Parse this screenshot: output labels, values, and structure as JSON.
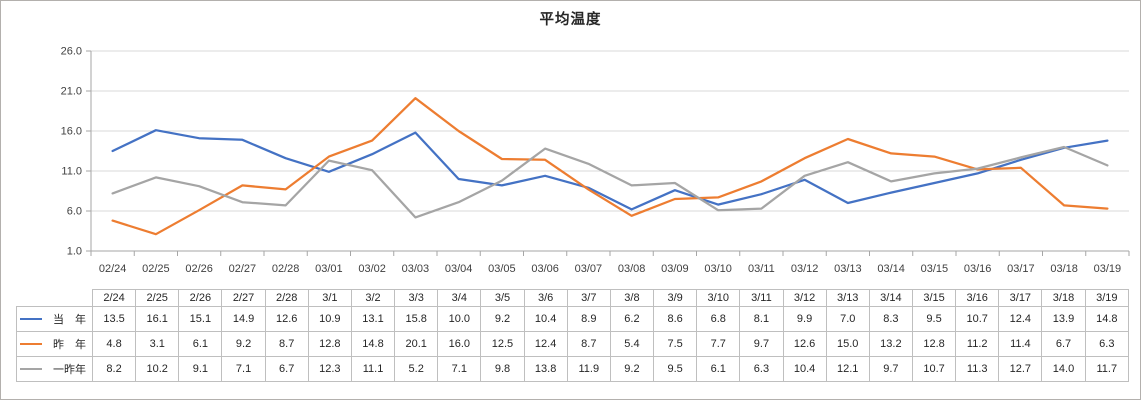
{
  "title": "平均温度",
  "chart_data": {
    "type": "line",
    "title": "平均温度",
    "x_axis_labels": [
      "02/24",
      "02/25",
      "02/26",
      "02/27",
      "02/28",
      "03/01",
      "03/02",
      "03/03",
      "03/04",
      "03/05",
      "03/06",
      "03/07",
      "03/08",
      "03/09",
      "03/10",
      "03/11",
      "03/12",
      "03/13",
      "03/14",
      "03/15",
      "03/16",
      "03/17",
      "03/18",
      "03/19"
    ],
    "table_headers": [
      "2/24",
      "2/25",
      "2/26",
      "2/27",
      "2/28",
      "3/1",
      "3/2",
      "3/3",
      "3/4",
      "3/5",
      "3/6",
      "3/7",
      "3/8",
      "3/9",
      "3/10",
      "3/11",
      "3/12",
      "3/13",
      "3/14",
      "3/15",
      "3/16",
      "3/17",
      "3/18",
      "3/19"
    ],
    "y_ticks": [
      26.0,
      21.0,
      16.0,
      11.0,
      6.0,
      1.0
    ],
    "ylim": [
      1.0,
      26.0
    ],
    "grid": true,
    "legend_position": "data-table-left",
    "series": [
      {
        "name": "当　年",
        "color": "#4472C4",
        "values": [
          13.5,
          16.1,
          15.1,
          14.9,
          12.6,
          10.9,
          13.1,
          15.8,
          10.0,
          9.2,
          10.4,
          8.9,
          6.2,
          8.6,
          6.8,
          8.1,
          9.9,
          7.0,
          8.3,
          9.5,
          10.7,
          12.4,
          13.9,
          14.8
        ]
      },
      {
        "name": "昨　年",
        "color": "#ED7D31",
        "values": [
          4.8,
          3.1,
          6.1,
          9.2,
          8.7,
          12.8,
          14.8,
          20.1,
          16.0,
          12.5,
          12.4,
          8.7,
          5.4,
          7.5,
          7.7,
          9.7,
          12.6,
          15.0,
          13.2,
          12.8,
          11.2,
          11.4,
          6.7,
          6.3
        ]
      },
      {
        "name": "一昨年",
        "color": "#A5A5A5",
        "values": [
          8.2,
          10.2,
          9.1,
          7.1,
          6.7,
          12.3,
          11.1,
          5.2,
          7.1,
          9.8,
          13.8,
          11.9,
          9.2,
          9.5,
          6.1,
          6.3,
          10.4,
          12.1,
          9.7,
          10.7,
          11.3,
          12.7,
          14.0,
          11.7
        ]
      }
    ]
  },
  "colors": {
    "background": "#FFFFFF",
    "gridline": "#D9D9D9",
    "axis": "#A6A6A6",
    "axis_label": "#404040",
    "table_border": "#BFBFBF",
    "text": "#262626",
    "outer_border": "#B3B0AD"
  }
}
